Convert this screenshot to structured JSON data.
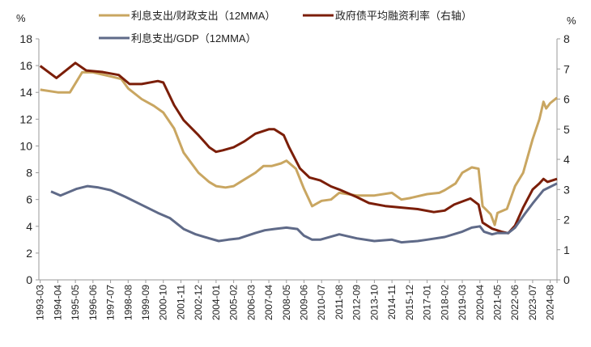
{
  "chart_data": {
    "type": "line",
    "title": "",
    "left_axis": {
      "unit_label": "%",
      "range": [
        0,
        18
      ],
      "ticks": [
        0,
        2,
        4,
        6,
        8,
        10,
        12,
        14,
        16,
        18
      ]
    },
    "right_axis": {
      "unit_label": "%",
      "range": [
        0,
        8
      ],
      "ticks": [
        0,
        1,
        2,
        3,
        4,
        5,
        6,
        7,
        8
      ]
    },
    "x_tick_labels": [
      "1993-03",
      "1994-04",
      "1995-05",
      "1996-06",
      "1997-07",
      "1998-08",
      "1999-09",
      "2000-10",
      "2001-11",
      "2002-12",
      "2004-01",
      "2005-02",
      "2006-03",
      "2007-04",
      "2008-05",
      "2009-06",
      "2010-07",
      "2011-08",
      "2012-09",
      "2013-10",
      "2014-11",
      "2015-12",
      "2017-01",
      "2018-02",
      "2019-03",
      "2020-04",
      "2021-05",
      "2022-06",
      "2023-07",
      "2024-08"
    ],
    "grid": false,
    "legend_placement": "top",
    "series": [
      {
        "name": "利息支出/财政支出（12MMA）",
        "axis": "left",
        "color": "#C9A661",
        "points": [
          [
            "1993-03",
            14.2
          ],
          [
            "1994-04",
            14.0
          ],
          [
            "1995-01",
            14.0
          ],
          [
            "1995-10",
            15.5
          ],
          [
            "1996-06",
            15.5
          ],
          [
            "1997-07",
            15.2
          ],
          [
            "1998-03",
            15.0
          ],
          [
            "1998-08",
            14.3
          ],
          [
            "1999-06",
            13.5
          ],
          [
            "2000-03",
            13.0
          ],
          [
            "2000-10",
            12.5
          ],
          [
            "2001-06",
            11.3
          ],
          [
            "2002-01",
            9.5
          ],
          [
            "2002-12",
            8.0
          ],
          [
            "2003-08",
            7.3
          ],
          [
            "2004-01",
            7.0
          ],
          [
            "2004-08",
            6.9
          ],
          [
            "2005-02",
            7.0
          ],
          [
            "2005-10",
            7.5
          ],
          [
            "2006-06",
            8.0
          ],
          [
            "2006-12",
            8.5
          ],
          [
            "2007-06",
            8.5
          ],
          [
            "2008-01",
            8.7
          ],
          [
            "2008-05",
            8.9
          ],
          [
            "2008-12",
            8.3
          ],
          [
            "2009-06",
            6.8
          ],
          [
            "2009-12",
            5.5
          ],
          [
            "2010-07",
            5.9
          ],
          [
            "2011-02",
            6.0
          ],
          [
            "2011-08",
            6.5
          ],
          [
            "2012-09",
            6.3
          ],
          [
            "2013-10",
            6.3
          ],
          [
            "2014-11",
            6.5
          ],
          [
            "2015-06",
            6.0
          ],
          [
            "2015-12",
            6.1
          ],
          [
            "2017-01",
            6.4
          ],
          [
            "2017-10",
            6.5
          ],
          [
            "2018-02",
            6.7
          ],
          [
            "2018-10",
            7.2
          ],
          [
            "2019-03",
            8.0
          ],
          [
            "2019-10",
            8.4
          ],
          [
            "2020-03",
            8.3
          ],
          [
            "2020-06",
            5.5
          ],
          [
            "2020-12",
            4.9
          ],
          [
            "2021-03",
            4.1
          ],
          [
            "2021-05",
            5.0
          ],
          [
            "2021-12",
            5.3
          ],
          [
            "2022-06",
            7.0
          ],
          [
            "2022-12",
            8.0
          ],
          [
            "2023-07",
            10.5
          ],
          [
            "2023-12",
            12.0
          ],
          [
            "2024-03",
            13.3
          ],
          [
            "2024-05",
            12.8
          ],
          [
            "2024-08",
            13.2
          ],
          [
            "2025-01",
            13.6
          ]
        ]
      },
      {
        "name": "政府债平均融资利率（右轴）",
        "axis": "right",
        "color": "#7B1E08",
        "points": [
          [
            "1993-03",
            7.1
          ],
          [
            "1994-03",
            6.7
          ],
          [
            "1995-05",
            7.2
          ],
          [
            "1996-01",
            6.95
          ],
          [
            "1997-01",
            6.9
          ],
          [
            "1998-01",
            6.8
          ],
          [
            "1998-09",
            6.5
          ],
          [
            "1999-06",
            6.5
          ],
          [
            "2000-06",
            6.6
          ],
          [
            "2000-10",
            6.55
          ],
          [
            "2001-06",
            5.8
          ],
          [
            "2002-01",
            5.3
          ],
          [
            "2002-12",
            4.8
          ],
          [
            "2003-08",
            4.4
          ],
          [
            "2004-01",
            4.25
          ],
          [
            "2004-06",
            4.3
          ],
          [
            "2005-02",
            4.4
          ],
          [
            "2005-10",
            4.6
          ],
          [
            "2006-06",
            4.85
          ],
          [
            "2007-04",
            5.0
          ],
          [
            "2007-08",
            5.0
          ],
          [
            "2008-03",
            4.8
          ],
          [
            "2008-07",
            4.4
          ],
          [
            "2009-03",
            3.7
          ],
          [
            "2009-10",
            3.4
          ],
          [
            "2010-06",
            3.3
          ],
          [
            "2011-02",
            3.1
          ],
          [
            "2011-08",
            3.0
          ],
          [
            "2012-09",
            2.75
          ],
          [
            "2013-06",
            2.55
          ],
          [
            "2014-06",
            2.45
          ],
          [
            "2015-06",
            2.4
          ],
          [
            "2016-06",
            2.35
          ],
          [
            "2017-06",
            2.25
          ],
          [
            "2018-02",
            2.3
          ],
          [
            "2018-09",
            2.5
          ],
          [
            "2019-03",
            2.6
          ],
          [
            "2019-09",
            2.7
          ],
          [
            "2020-03",
            2.5
          ],
          [
            "2020-06",
            1.9
          ],
          [
            "2021-01",
            1.7
          ],
          [
            "2021-08",
            1.6
          ],
          [
            "2022-01",
            1.55
          ],
          [
            "2022-06",
            1.8
          ],
          [
            "2022-12",
            2.4
          ],
          [
            "2023-07",
            3.0
          ],
          [
            "2023-12",
            3.2
          ],
          [
            "2024-03",
            3.35
          ],
          [
            "2024-06",
            3.25
          ],
          [
            "2025-01",
            3.35
          ]
        ]
      },
      {
        "name": "利息支出/GDP（12MMA）",
        "axis": "left",
        "color": "#5F6A88",
        "points": [
          [
            "1993-11",
            6.6
          ],
          [
            "1994-06",
            6.3
          ],
          [
            "1995-06",
            6.8
          ],
          [
            "1996-02",
            7.0
          ],
          [
            "1996-10",
            6.9
          ],
          [
            "1997-07",
            6.7
          ],
          [
            "1998-06",
            6.2
          ],
          [
            "1999-06",
            5.6
          ],
          [
            "2000-06",
            5.0
          ],
          [
            "2001-03",
            4.6
          ],
          [
            "2002-01",
            3.8
          ],
          [
            "2002-10",
            3.4
          ],
          [
            "2003-08",
            3.1
          ],
          [
            "2004-03",
            2.9
          ],
          [
            "2004-10",
            3.0
          ],
          [
            "2005-06",
            3.1
          ],
          [
            "2006-06",
            3.5
          ],
          [
            "2007-01",
            3.7
          ],
          [
            "2007-08",
            3.8
          ],
          [
            "2008-05",
            3.9
          ],
          [
            "2009-01",
            3.8
          ],
          [
            "2009-06",
            3.3
          ],
          [
            "2009-12",
            3.0
          ],
          [
            "2010-06",
            3.0
          ],
          [
            "2011-08",
            3.4
          ],
          [
            "2012-09",
            3.1
          ],
          [
            "2013-10",
            2.9
          ],
          [
            "2014-11",
            3.0
          ],
          [
            "2015-06",
            2.8
          ],
          [
            "2016-06",
            2.9
          ],
          [
            "2017-01",
            3.0
          ],
          [
            "2018-02",
            3.2
          ],
          [
            "2019-03",
            3.6
          ],
          [
            "2019-10",
            3.9
          ],
          [
            "2020-04",
            4.0
          ],
          [
            "2020-07",
            3.6
          ],
          [
            "2021-01",
            3.4
          ],
          [
            "2021-05",
            3.5
          ],
          [
            "2022-01",
            3.5
          ],
          [
            "2022-06",
            3.9
          ],
          [
            "2023-01",
            4.9
          ],
          [
            "2023-07",
            5.7
          ],
          [
            "2024-03",
            6.7
          ],
          [
            "2025-01",
            7.2
          ]
        ]
      }
    ]
  }
}
